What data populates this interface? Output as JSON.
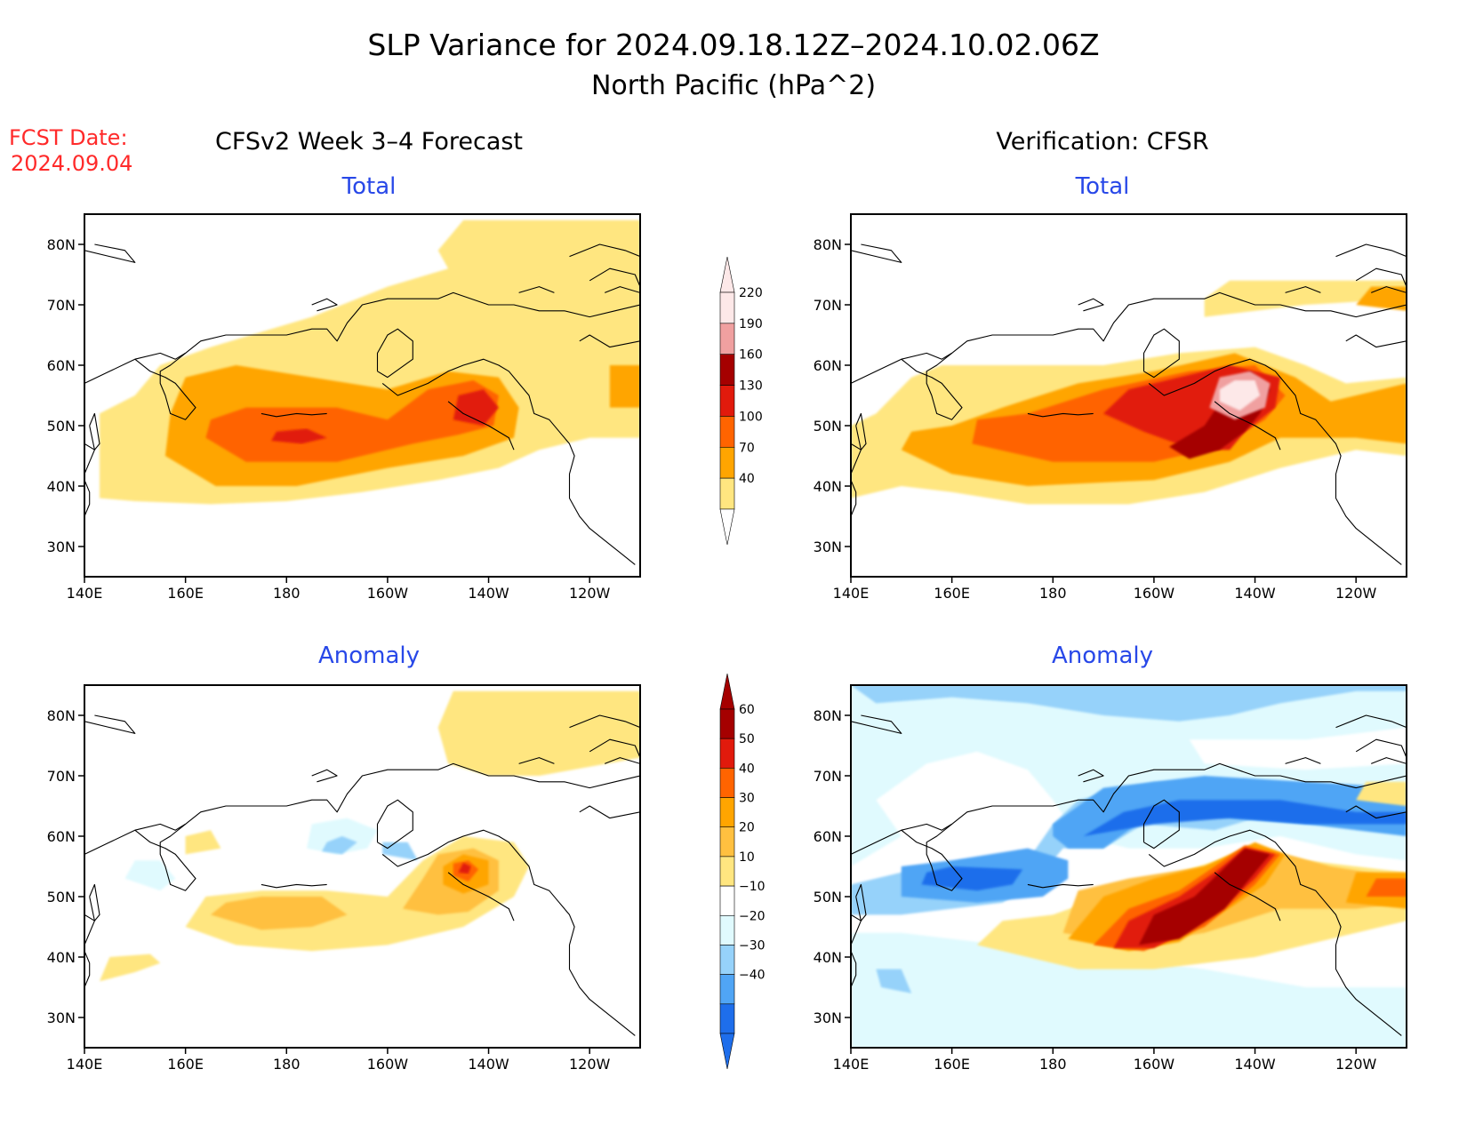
{
  "title": {
    "line1": "SLP Variance for 2024.09.18.12Z–2024.10.02.06Z",
    "line2": "North Pacific (hPa^2)"
  },
  "forecast_date": {
    "label": "FCST Date:",
    "value": "2024.09.04",
    "color": "#ff2a2a"
  },
  "columns": {
    "left": "CFSv2 Week 3–4 Forecast",
    "right": "Verification: CFSR"
  },
  "panels": [
    {
      "id": "fcst-total",
      "title": "Total",
      "field": "total_fcst"
    },
    {
      "id": "obs-total",
      "title": "Total",
      "field": "total_obs"
    },
    {
      "id": "fcst-anomaly",
      "title": "Anomaly",
      "field": "anom_fcst"
    },
    {
      "id": "obs-anomaly",
      "title": "Anomaly",
      "field": "anom_obs"
    }
  ],
  "axes": {
    "lat_labels": [
      "80N",
      "70N",
      "60N",
      "50N",
      "40N",
      "30N"
    ],
    "lat_values": [
      80,
      70,
      60,
      50,
      40,
      30
    ],
    "lon_labels": [
      "140E",
      "160E",
      "180",
      "160W",
      "140W",
      "120W"
    ],
    "lon_values": [
      140,
      160,
      180,
      200,
      220,
      240
    ],
    "lon_range": [
      140,
      250
    ],
    "lat_range": [
      25,
      85
    ]
  },
  "colorbars": {
    "total": {
      "labels": [
        "40",
        "70",
        "100",
        "130",
        "160",
        "190",
        "220"
      ],
      "levels": [
        40,
        70,
        100,
        130,
        160,
        190,
        220
      ],
      "colors": [
        "#ffe680",
        "#ffa500",
        "#ff6400",
        "#e11a0c",
        "#a50000",
        "#f0a0a0",
        "#fde8e8"
      ]
    },
    "anomaly": {
      "labels": [
        "60",
        "50",
        "40",
        "30",
        "20",
        "10",
        "−10",
        "−20",
        "−30",
        "−40"
      ],
      "levels": [
        60,
        50,
        40,
        30,
        20,
        10,
        -10,
        -20,
        -30,
        -40
      ],
      "colors": [
        "#a50000",
        "#e11a0c",
        "#ff6400",
        "#ffa500",
        "#ffc040",
        "#ffe680",
        "#ffffff",
        "#e0fafe",
        "#96d2fa",
        "#50a5f5",
        "#1e6eeb"
      ]
    }
  },
  "title_color": "#2848e8"
}
